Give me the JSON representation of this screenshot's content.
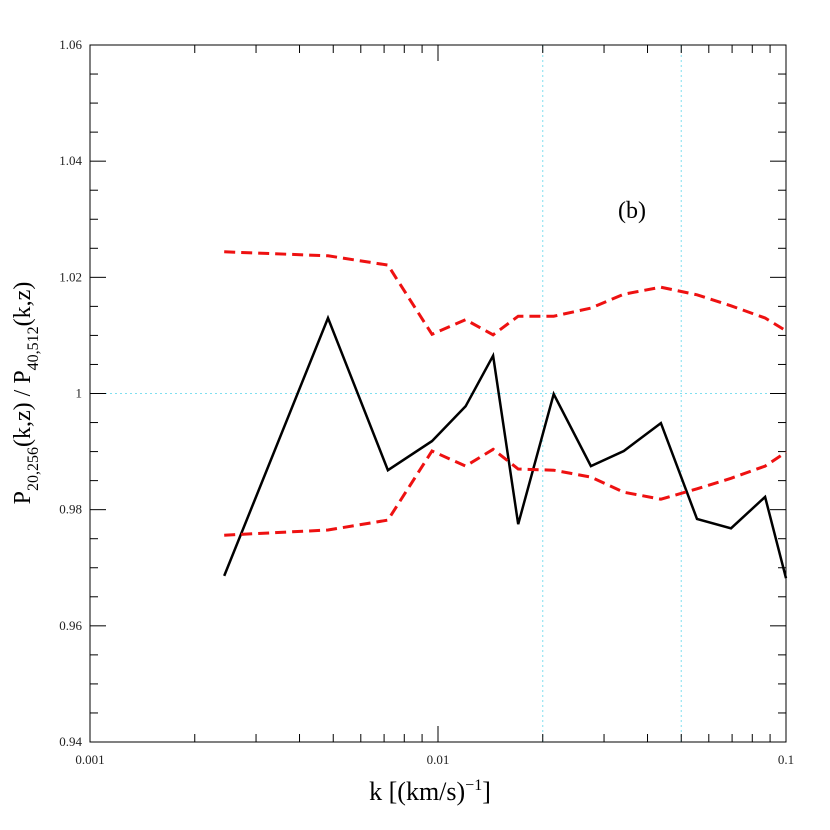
{
  "chart_data": {
    "type": "line",
    "annotation": "(b)",
    "xlabel_parts": [
      "k  [(km/s)",
      "−1",
      "]"
    ],
    "ylabel_parts": [
      "P",
      "20,256",
      "(k,z)  /  P",
      "40,512",
      "(k,z)"
    ],
    "xlog": true,
    "xlim": [
      0.001,
      0.1
    ],
    "xticks": [
      0.001,
      0.01,
      0.1
    ],
    "ylim": [
      0.94,
      1.06
    ],
    "yticks": [
      0.94,
      0.96,
      0.98,
      1,
      1.02,
      1.04,
      1.06
    ],
    "reference_color": "#7fdfef",
    "vlines": [
      0.02,
      0.05
    ],
    "hlines": [
      1
    ],
    "series": [
      {
        "color": "#000000",
        "style": "solid",
        "x": [
          0.00243,
          0.00483,
          0.00718,
          0.00961,
          0.012,
          0.0144,
          0.017,
          0.0215,
          0.0275,
          0.0342,
          0.0437,
          0.0555,
          0.0695,
          0.0871,
          0.1
        ],
        "values": [
          0.9686,
          1.013,
          0.9868,
          0.9918,
          0.9978,
          1.0065,
          0.9775,
          0.9999,
          0.9875,
          0.9901,
          0.9949,
          0.9784,
          0.9768,
          0.9822,
          0.9682
        ]
      },
      {
        "color": "#ee1111",
        "style": "dashed",
        "x": [
          0.00243,
          0.00483,
          0.00718,
          0.00961,
          0.012,
          0.0144,
          0.017,
          0.0215,
          0.0275,
          0.0342,
          0.0437,
          0.0555,
          0.0695,
          0.0871,
          0.1
        ],
        "values": [
          1.0244,
          1.0237,
          1.0221,
          1.0102,
          1.0127,
          1.0101,
          1.0133,
          1.0133,
          1.0147,
          1.0171,
          1.0183,
          1.017,
          1.0151,
          1.013,
          1.0108
        ]
      },
      {
        "color": "#ee1111",
        "style": "dashed",
        "x": [
          0.00243,
          0.00483,
          0.00718,
          0.00961,
          0.012,
          0.0144,
          0.017,
          0.0215,
          0.0275,
          0.0342,
          0.0437,
          0.0555,
          0.0695,
          0.0871,
          0.1
        ],
        "values": [
          0.9756,
          0.9765,
          0.9782,
          0.9901,
          0.9875,
          0.9904,
          0.987,
          0.9868,
          0.9856,
          0.983,
          0.9818,
          0.9836,
          0.9854,
          0.9875,
          0.9899
        ]
      }
    ]
  }
}
